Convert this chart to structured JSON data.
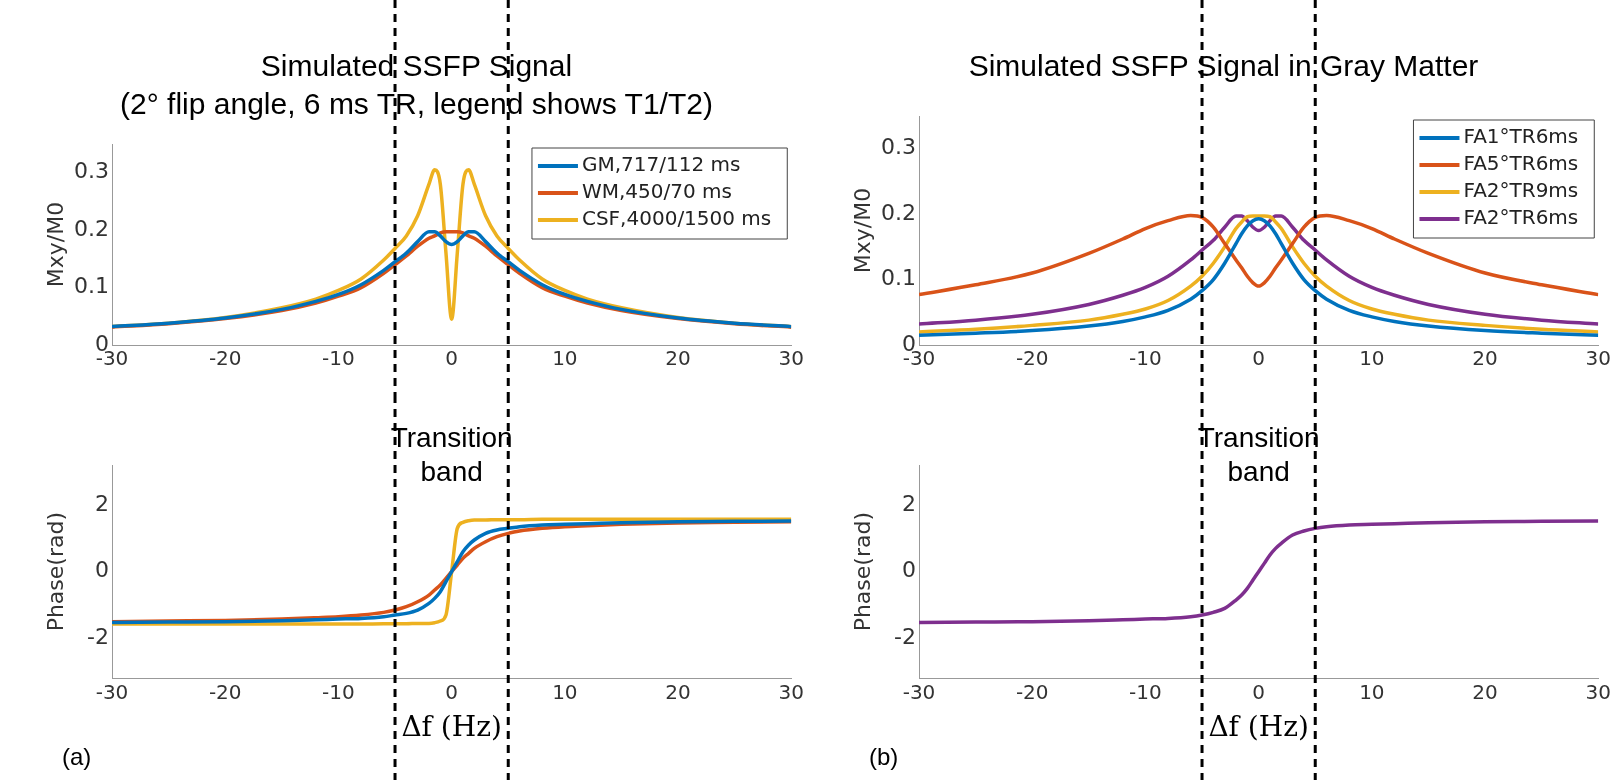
{
  "chart_data": [
    {
      "type": "line",
      "title": "Simulated SSFP Signal",
      "subtitle": "(2° flip angle, 6 ms TR, legend shows T1/T2)",
      "ylabel": "Mxy/M0",
      "x": [
        -30,
        -25,
        -20,
        -15,
        -12,
        -10,
        -8,
        -6,
        -5,
        -4,
        -3,
        -2,
        -1.5,
        -1,
        -0.5,
        0,
        0.5,
        1,
        1.5,
        2,
        3,
        4,
        5,
        6,
        8,
        10,
        12,
        15,
        20,
        25,
        30
      ],
      "xlim": [
        -30,
        30
      ],
      "xticks": [
        -30,
        -20,
        -10,
        0,
        10,
        20,
        30
      ],
      "ylim": [
        0,
        0.35
      ],
      "yticks": [
        0,
        0.1,
        0.2,
        0.3
      ],
      "legend": "top right",
      "ref_lines": [
        {
          "axis": "x",
          "value": -5,
          "color": "#000000",
          "line_style": "dashed"
        },
        {
          "axis": "x",
          "value": 5,
          "color": "#000000",
          "line_style": "dashed"
        }
      ],
      "series": [
        {
          "name": "GM,717/112 ms",
          "color": "#0072bd",
          "values": [
            0.032,
            0.038,
            0.047,
            0.062,
            0.076,
            0.088,
            0.105,
            0.13,
            0.145,
            0.16,
            0.18,
            0.197,
            0.197,
            0.19,
            0.18,
            0.175,
            0.18,
            0.19,
            0.197,
            0.197,
            0.18,
            0.16,
            0.145,
            0.13,
            0.105,
            0.088,
            0.076,
            0.062,
            0.047,
            0.038,
            0.032
          ]
        },
        {
          "name": "WM,450/70 ms",
          "color": "#d95319",
          "values": [
            0.031,
            0.037,
            0.046,
            0.06,
            0.073,
            0.085,
            0.1,
            0.125,
            0.14,
            0.155,
            0.172,
            0.186,
            0.19,
            0.195,
            0.197,
            0.197,
            0.197,
            0.195,
            0.19,
            0.186,
            0.172,
            0.155,
            0.14,
            0.125,
            0.1,
            0.085,
            0.073,
            0.06,
            0.046,
            0.037,
            0.031
          ]
        },
        {
          "name": "CSF,4000/1500 ms",
          "color": "#edb120",
          "values": [
            0.032,
            0.038,
            0.048,
            0.065,
            0.08,
            0.095,
            0.115,
            0.148,
            0.168,
            0.19,
            0.225,
            0.28,
            0.305,
            0.28,
            0.16,
            0.045,
            0.16,
            0.28,
            0.305,
            0.28,
            0.225,
            0.19,
            0.168,
            0.148,
            0.115,
            0.095,
            0.08,
            0.065,
            0.048,
            0.038,
            0.032
          ]
        }
      ]
    },
    {
      "type": "line",
      "xlabel": "Δf (Hz)",
      "ylabel": "Phase(rad)",
      "x": [
        -30,
        -25,
        -20,
        -15,
        -12,
        -10,
        -8,
        -6,
        -5,
        -4,
        -3,
        -2,
        -1.5,
        -1,
        -0.5,
        0,
        0.5,
        1,
        1.5,
        2,
        3,
        4,
        5,
        6,
        8,
        10,
        12,
        15,
        20,
        25,
        30
      ],
      "xlim": [
        -30,
        30
      ],
      "xticks": [
        -30,
        -20,
        -10,
        0,
        10,
        20,
        30
      ],
      "ylim": [
        -3.2,
        3.2
      ],
      "yticks": [
        -2,
        0,
        2
      ],
      "ref_lines": [
        {
          "axis": "x",
          "value": -5,
          "color": "#000000",
          "line_style": "dashed"
        },
        {
          "axis": "x",
          "value": 5,
          "color": "#000000",
          "line_style": "dashed"
        }
      ],
      "annotations": [
        "Transition band",
        "(a)"
      ],
      "series": [
        {
          "color": "#0072bd",
          "values": [
            -1.52,
            -1.51,
            -1.5,
            -1.47,
            -1.44,
            -1.42,
            -1.4,
            -1.35,
            -1.3,
            -1.25,
            -1.15,
            -0.95,
            -0.8,
            -0.6,
            -0.3,
            0,
            0.3,
            0.6,
            0.8,
            0.95,
            1.15,
            1.25,
            1.3,
            1.35,
            1.4,
            1.42,
            1.44,
            1.47,
            1.5,
            1.51,
            1.52
          ]
        },
        {
          "color": "#d95319",
          "values": [
            -1.5,
            -1.48,
            -1.46,
            -1.42,
            -1.38,
            -1.35,
            -1.3,
            -1.22,
            -1.15,
            -1.05,
            -0.9,
            -0.7,
            -0.55,
            -0.4,
            -0.2,
            0,
            0.2,
            0.4,
            0.55,
            0.7,
            0.9,
            1.05,
            1.15,
            1.22,
            1.3,
            1.35,
            1.38,
            1.42,
            1.46,
            1.48,
            1.5
          ]
        },
        {
          "color": "#edb120",
          "values": [
            -1.57,
            -1.57,
            -1.57,
            -1.57,
            -1.57,
            -1.57,
            -1.57,
            -1.56,
            -1.56,
            -1.56,
            -1.55,
            -1.55,
            -1.53,
            -1.48,
            -1.3,
            0,
            1.3,
            1.48,
            1.53,
            1.55,
            1.55,
            1.56,
            1.56,
            1.56,
            1.57,
            1.57,
            1.57,
            1.57,
            1.57,
            1.57,
            1.57
          ]
        }
      ]
    },
    {
      "type": "line",
      "title": "Simulated SSFP Signal in Gray Matter",
      "ylabel": "Mxy/M0",
      "x": [
        -30,
        -25,
        -20,
        -15,
        -12,
        -10,
        -8,
        -6,
        -5,
        -4,
        -3,
        -2,
        -1.5,
        -1,
        -0.5,
        0,
        0.5,
        1,
        1.5,
        2,
        3,
        4,
        5,
        6,
        8,
        10,
        12,
        15,
        20,
        25,
        30
      ],
      "xlim": [
        -30,
        30
      ],
      "xticks": [
        -30,
        -20,
        -10,
        0,
        10,
        20,
        30
      ],
      "ylim": [
        0,
        0.35
      ],
      "yticks": [
        0,
        0.1,
        0.2,
        0.3
      ],
      "legend": "top right",
      "ref_lines": [
        {
          "axis": "x",
          "value": -5,
          "color": "#000000",
          "line_style": "dashed"
        },
        {
          "axis": "x",
          "value": 5,
          "color": "#000000",
          "line_style": "dashed"
        }
      ],
      "series": [
        {
          "name": "FA1°TR6ms",
          "color": "#0072bd",
          "values": [
            0.015,
            0.018,
            0.022,
            0.029,
            0.036,
            0.043,
            0.053,
            0.07,
            0.083,
            0.1,
            0.125,
            0.155,
            0.17,
            0.182,
            0.19,
            0.193,
            0.19,
            0.182,
            0.17,
            0.155,
            0.125,
            0.1,
            0.083,
            0.07,
            0.053,
            0.043,
            0.036,
            0.029,
            0.022,
            0.018,
            0.015
          ]
        },
        {
          "name": "FA5°TR6ms",
          "color": "#d95319",
          "values": [
            0.077,
            0.092,
            0.11,
            0.14,
            0.162,
            0.178,
            0.19,
            0.198,
            0.195,
            0.18,
            0.155,
            0.13,
            0.118,
            0.105,
            0.095,
            0.09,
            0.095,
            0.105,
            0.118,
            0.13,
            0.155,
            0.18,
            0.195,
            0.198,
            0.19,
            0.178,
            0.162,
            0.14,
            0.11,
            0.092,
            0.077
          ]
        },
        {
          "name": "FA2°TR9ms",
          "color": "#edb120",
          "values": [
            0.02,
            0.024,
            0.03,
            0.038,
            0.047,
            0.055,
            0.068,
            0.09,
            0.105,
            0.125,
            0.15,
            0.178,
            0.188,
            0.196,
            0.197,
            0.197,
            0.197,
            0.196,
            0.188,
            0.178,
            0.15,
            0.125,
            0.105,
            0.09,
            0.068,
            0.055,
            0.047,
            0.038,
            0.03,
            0.024,
            0.02
          ]
        },
        {
          "name": "FA2°TR6ms",
          "color": "#7e2f8e",
          "values": [
            0.032,
            0.038,
            0.047,
            0.062,
            0.076,
            0.088,
            0.105,
            0.13,
            0.145,
            0.16,
            0.18,
            0.197,
            0.197,
            0.19,
            0.18,
            0.175,
            0.18,
            0.19,
            0.197,
            0.197,
            0.18,
            0.16,
            0.145,
            0.13,
            0.105,
            0.088,
            0.076,
            0.062,
            0.047,
            0.038,
            0.032
          ]
        }
      ]
    },
    {
      "type": "line",
      "xlabel": "Δf (Hz)",
      "ylabel": "Phase(rad)",
      "x": [
        -30,
        -25,
        -20,
        -15,
        -12,
        -10,
        -8,
        -6,
        -5,
        -4,
        -3,
        -2,
        -1.5,
        -1,
        -0.5,
        0,
        0.5,
        1,
        1.5,
        2,
        3,
        4,
        5,
        6,
        8,
        10,
        12,
        15,
        20,
        25,
        30
      ],
      "xlim": [
        -30,
        30
      ],
      "xticks": [
        -30,
        -20,
        -10,
        0,
        10,
        20,
        30
      ],
      "ylim": [
        -3.2,
        3.2
      ],
      "yticks": [
        -2,
        0,
        2
      ],
      "ref_lines": [
        {
          "axis": "x",
          "value": -5,
          "color": "#000000",
          "line_style": "dashed"
        },
        {
          "axis": "x",
          "value": 5,
          "color": "#000000",
          "line_style": "dashed"
        }
      ],
      "annotations": [
        "Transition band",
        "(b)"
      ],
      "series": [
        {
          "color": "#7e2f8e",
          "values": [
            -1.52,
            -1.51,
            -1.5,
            -1.47,
            -1.44,
            -1.42,
            -1.4,
            -1.35,
            -1.3,
            -1.22,
            -1.1,
            -0.85,
            -0.7,
            -0.5,
            -0.25,
            0,
            0.25,
            0.5,
            0.7,
            0.85,
            1.1,
            1.22,
            1.3,
            1.35,
            1.4,
            1.42,
            1.44,
            1.47,
            1.5,
            1.51,
            1.52
          ]
        }
      ]
    }
  ]
}
